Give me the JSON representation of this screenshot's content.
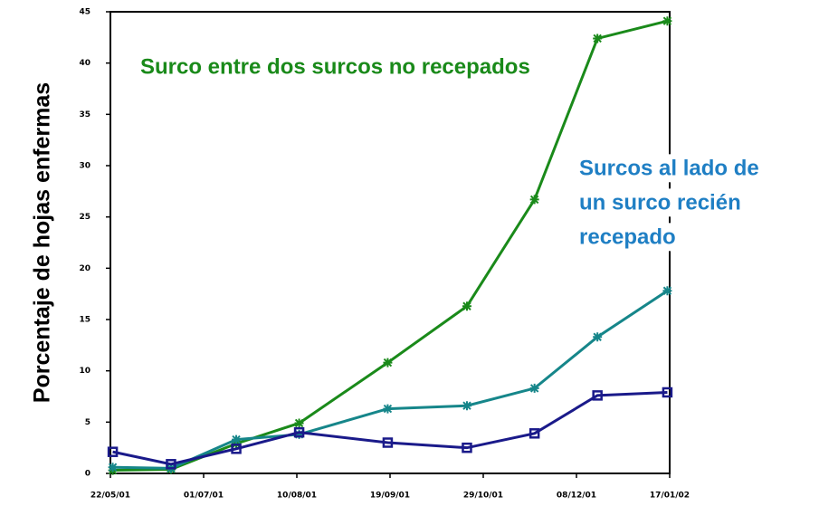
{
  "chart_data": {
    "type": "line",
    "y_label": "Porcentaje de hojas enfermas",
    "x": [
      "23/05/01",
      "17/06/01",
      "15/07/01",
      "11/08/01",
      "18/09/01",
      "22/10/01",
      "20/11/01",
      "17/12/01",
      "16/01/02"
    ],
    "xlim": [
      "22/05/01",
      "17/01/02"
    ],
    "xticks": [
      "22/05/01",
      "01/07/01",
      "10/08/01",
      "19/09/01",
      "29/10/01",
      "08/12/01",
      "17/01/02"
    ],
    "ylim": [
      0,
      45
    ],
    "yticks": [
      0,
      5,
      10,
      15,
      20,
      25,
      30,
      35,
      40,
      45
    ],
    "series": [
      {
        "color": "#1a8a1a",
        "marker": "star",
        "values": [
          0.3,
          0.4,
          2.9,
          4.9,
          10.8,
          16.3,
          26.7,
          42.4,
          44.1
        ]
      },
      {
        "color": "#16868a",
        "marker": "star",
        "values": [
          0.6,
          0.5,
          3.3,
          3.8,
          6.3,
          6.6,
          8.3,
          13.3,
          17.8
        ]
      },
      {
        "color": "#1a1a8a",
        "marker": "square",
        "values": [
          2.1,
          0.9,
          2.4,
          4.0,
          3.0,
          2.5,
          3.9,
          7.6,
          7.9
        ]
      }
    ],
    "annotations": [
      {
        "color": "#1a8a1a",
        "lines": [
          "Surco entre dos surcos no recepados"
        ]
      },
      {
        "color": "#1f7fc4",
        "lines": [
          "Surcos al lado de",
          "un surco recién",
          "recepado"
        ]
      }
    ]
  }
}
